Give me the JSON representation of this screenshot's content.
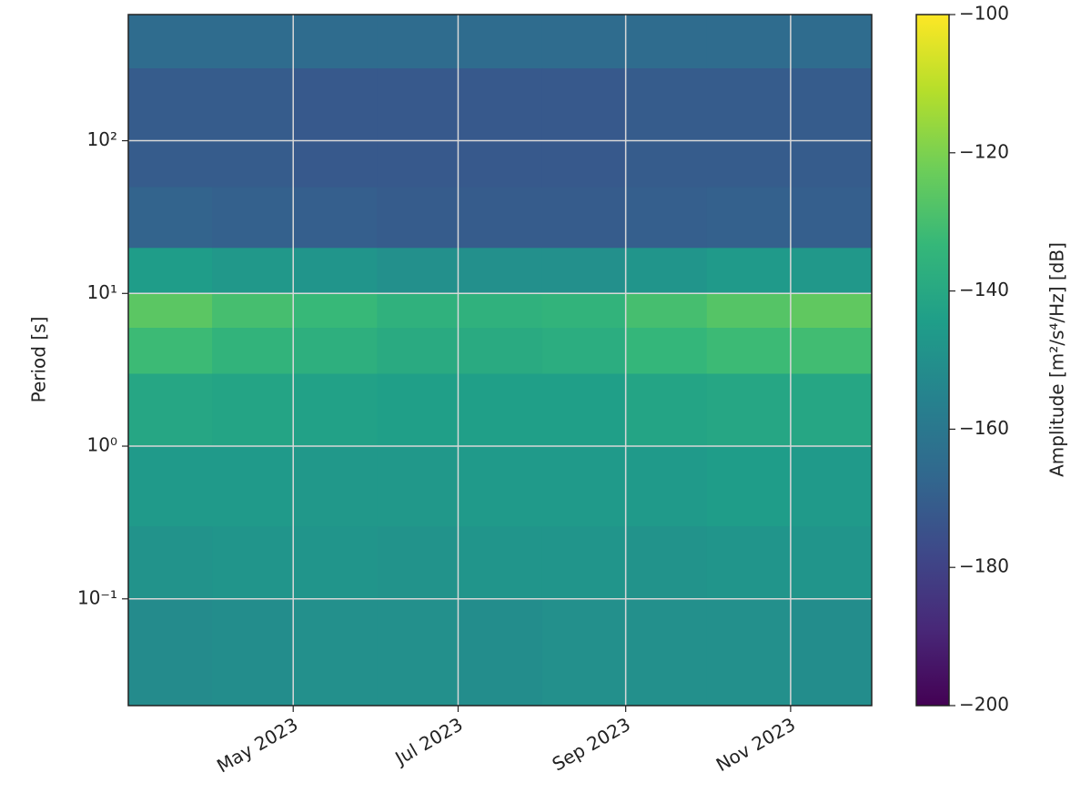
{
  "chart_data": {
    "type": "heatmap",
    "colormap": "viridis",
    "y_label": "Period [s]",
    "colorbar_label": "Amplitude [m²/s⁴/Hz] [dB]",
    "x_edges": [
      "2023-03",
      "2023-04",
      "2023-05",
      "2023-06",
      "2023-07",
      "2023-08",
      "2023-09",
      "2023-10",
      "2023-11",
      "2023-12"
    ],
    "y_edges": [
      0.02,
      0.1,
      0.3,
      1,
      3,
      6,
      10,
      20,
      50,
      300,
      670
    ],
    "values": [
      [
        -152,
        -151,
        -150,
        -150,
        -151,
        -150,
        -150,
        -150,
        -151
      ],
      [
        -149,
        -148,
        -148,
        -149,
        -148,
        -148,
        -149,
        -148,
        -148
      ],
      [
        -146,
        -146,
        -147,
        -147,
        -146,
        -146,
        -146,
        -145,
        -146
      ],
      [
        -141,
        -142,
        -143,
        -144,
        -144,
        -144,
        -142,
        -141,
        -141
      ],
      [
        -132,
        -135,
        -137,
        -139,
        -139,
        -138,
        -134,
        -132,
        -131
      ],
      [
        -126,
        -130,
        -133,
        -136,
        -136,
        -135,
        -130,
        -127,
        -125
      ],
      [
        -145,
        -147,
        -148,
        -150,
        -150,
        -150,
        -148,
        -146,
        -147
      ],
      [
        -168,
        -169,
        -170,
        -171,
        -171,
        -171,
        -170,
        -169,
        -170
      ],
      [
        -171,
        -171,
        -172,
        -172,
        -172,
        -172,
        -171,
        -171,
        -171
      ],
      [
        -165,
        -165,
        -165,
        -165,
        -165,
        -165,
        -165,
        -165,
        -165
      ]
    ],
    "xlim": [
      "2023-03",
      "2023-12"
    ],
    "xticks": [
      {
        "value": "2023-05",
        "label": "May 2023"
      },
      {
        "value": "2023-07",
        "label": "Jul 2023"
      },
      {
        "value": "2023-09",
        "label": "Sep 2023"
      },
      {
        "value": "2023-11",
        "label": "Nov 2023"
      }
    ],
    "ylim": [
      0.02,
      670
    ],
    "log_y": true,
    "yticks": [
      {
        "value": 0.1,
        "label": "10⁻¹"
      },
      {
        "value": 1,
        "label": "10⁰"
      },
      {
        "value": 10,
        "label": "10¹"
      },
      {
        "value": 100,
        "label": "10²"
      }
    ],
    "clim": [
      -200,
      -100
    ],
    "cticks": [
      {
        "value": -200,
        "label": "−200"
      },
      {
        "value": -180,
        "label": "−180"
      },
      {
        "value": -160,
        "label": "−160"
      },
      {
        "value": -140,
        "label": "−140"
      },
      {
        "value": -120,
        "label": "−120"
      },
      {
        "value": -100,
        "label": "−100"
      }
    ],
    "grid": true
  }
}
